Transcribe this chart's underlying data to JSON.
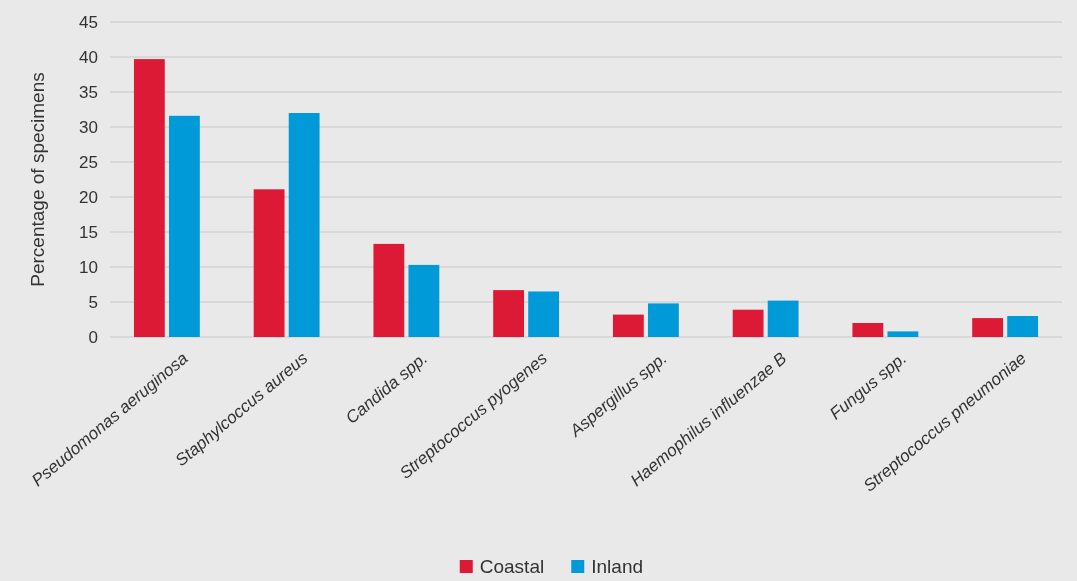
{
  "chart_data": {
    "type": "bar",
    "ylabel": "Percentage of specimens",
    "categories": [
      "Pseudomonas aeruginosa",
      "Staphylcoccus aureus",
      "Candida spp.",
      "Streptococcus pyogenes",
      "Aspergillus spp.",
      "Haemophilus influenzae B",
      "Fungus spp.",
      "Streptococcus pneumoniae"
    ],
    "series": [
      {
        "name": "Coastal",
        "color": "#dc1a35",
        "values": [
          39.7,
          21.1,
          13.3,
          6.7,
          3.2,
          3.9,
          2.0,
          2.7
        ]
      },
      {
        "name": "Inland",
        "color": "#009ad9",
        "values": [
          31.6,
          32.0,
          10.3,
          6.5,
          4.8,
          5.2,
          0.8,
          3.0
        ]
      }
    ],
    "ylim": [
      0,
      45
    ],
    "yticks": [
      0,
      5,
      10,
      15,
      20,
      25,
      30,
      35,
      40,
      45
    ],
    "grid": "y",
    "legend": "bottom"
  }
}
